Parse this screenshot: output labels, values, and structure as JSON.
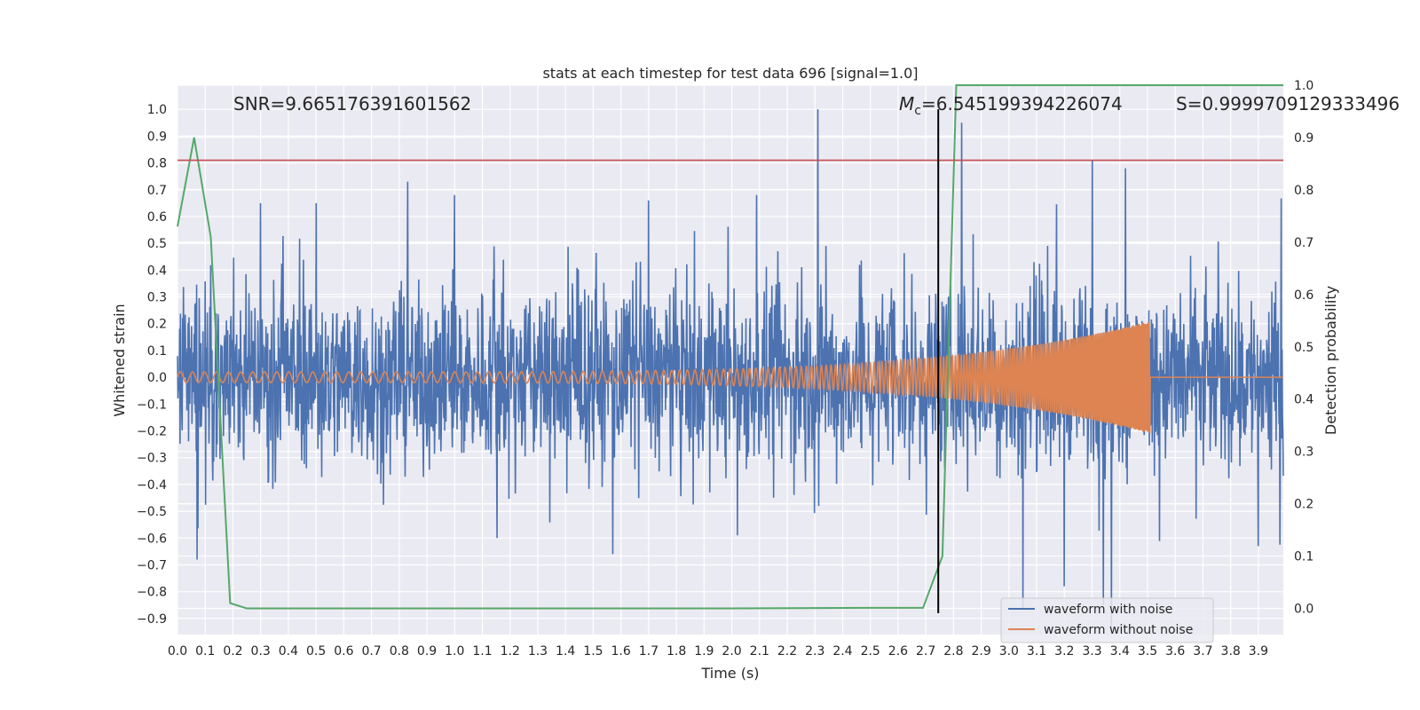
{
  "chart_data": {
    "type": "line",
    "title": "stats at each timestep for test data 696 [signal=1.0]",
    "xlabel": "Time (s)",
    "ylabel": "Whitened strain",
    "ylabel_right": "Detection probability",
    "xlim": [
      0.0,
      3.99
    ],
    "ylim": [
      -0.96,
      1.09
    ],
    "ylim_right": [
      -0.05,
      1.0
    ],
    "grid": true,
    "x_ticks": [
      0.0,
      0.1,
      0.2,
      0.3,
      0.4,
      0.5,
      0.6,
      0.7,
      0.8,
      0.9,
      1.0,
      1.1,
      1.2,
      1.3,
      1.4,
      1.5,
      1.6,
      1.7,
      1.8,
      1.9,
      2.0,
      2.1,
      2.2,
      2.3,
      2.4,
      2.5,
      2.6,
      2.7,
      2.8,
      2.9,
      3.0,
      3.1,
      3.2,
      3.3,
      3.4,
      3.5,
      3.6,
      3.7,
      3.8,
      3.9
    ],
    "x_tick_labels": [
      "0.0",
      "0.1",
      "0.2",
      "0.3",
      "0.4",
      "0.5",
      "0.6",
      "0.7",
      "0.8",
      "0.9",
      "1.0",
      "1.1",
      "1.2",
      "1.3",
      "1.4",
      "1.5",
      "1.6",
      "1.7",
      "1.8",
      "1.9",
      "2.0",
      "2.1",
      "2.2",
      "2.3",
      "2.4",
      "2.5",
      "2.6",
      "2.7",
      "2.8",
      "2.9",
      "3.0",
      "3.1",
      "3.2",
      "3.3",
      "3.4",
      "3.5",
      "3.6",
      "3.7",
      "3.8",
      "3.9"
    ],
    "y_ticks": [
      -0.9,
      -0.8,
      -0.7,
      -0.6,
      -0.5,
      -0.4,
      -0.3,
      -0.2,
      -0.1,
      0.0,
      0.1,
      0.2,
      0.3,
      0.4,
      0.5,
      0.6,
      0.7,
      0.8,
      0.9,
      1.0
    ],
    "y_tick_labels": [
      "−0.9",
      "−0.8",
      "−0.7",
      "−0.6",
      "−0.5",
      "−0.4",
      "−0.3",
      "−0.2",
      "−0.1",
      "0.0",
      "0.1",
      "0.2",
      "0.3",
      "0.4",
      "0.5",
      "0.6",
      "0.7",
      "0.8",
      "0.9",
      "1.0"
    ],
    "y_right_ticks": [
      0.0,
      0.1,
      0.2,
      0.3,
      0.4,
      0.5,
      0.6,
      0.7,
      0.8,
      0.9,
      1.0
    ],
    "y_right_tick_labels": [
      "0.0",
      "0.1",
      "0.2",
      "0.3",
      "0.4",
      "0.5",
      "0.6",
      "0.7",
      "0.8",
      "0.9",
      "1.0"
    ],
    "series": [
      {
        "name": "waveform with noise",
        "color": "#4c72b0",
        "axis": "left",
        "description_value": "dense noise, approx uniform amplitude ±0.3 with spikes up to 1.0",
        "amplitude_typical": 0.3,
        "spikes": [
          {
            "x": 0.3,
            "y": 0.65
          },
          {
            "x": 0.5,
            "y": 0.65
          },
          {
            "x": 0.83,
            "y": 0.73
          },
          {
            "x": 1.0,
            "y": 0.68
          },
          {
            "x": 1.7,
            "y": 0.66
          },
          {
            "x": 2.09,
            "y": 0.68
          },
          {
            "x": 2.31,
            "y": 1.0
          },
          {
            "x": 2.83,
            "y": 0.95
          },
          {
            "x": 3.3,
            "y": 0.81
          },
          {
            "x": 3.42,
            "y": 0.78
          },
          {
            "x": 0.07,
            "y": -0.68
          },
          {
            "x": 1.57,
            "y": -0.66
          },
          {
            "x": 2.02,
            "y": -0.59
          },
          {
            "x": 3.05,
            "y": -0.86
          },
          {
            "x": 3.2,
            "y": -0.78
          },
          {
            "x": 3.34,
            "y": -0.85
          },
          {
            "x": 3.37,
            "y": -0.93
          },
          {
            "x": 3.9,
            "y": -0.63
          }
        ]
      },
      {
        "name": "waveform without noise",
        "color": "#dd8452",
        "axis": "left",
        "chirp": {
          "start_x": 0.0,
          "merger_x": 3.51,
          "start_amplitude": 0.02,
          "peak_amplitude": 0.21,
          "start_freq_hz": 23,
          "end_freq_hz": 200
        }
      },
      {
        "name": "detection probability",
        "color": "#55a868",
        "axis": "right",
        "x": [
          0.0,
          0.06,
          0.12,
          0.19,
          0.25,
          2.0,
          2.5,
          2.69,
          2.76,
          2.81,
          3.99
        ],
        "y": [
          0.73,
          0.9,
          0.71,
          0.01,
          0.0,
          0.0,
          0.001,
          0.001,
          0.1,
          1.0,
          1.0
        ]
      }
    ],
    "hline": {
      "y": 0.81,
      "color": "#c44e52",
      "axis": "left"
    },
    "vline": {
      "x": 2.745,
      "color": "#000000",
      "y_range": [
        -0.88,
        1.0
      ]
    },
    "annotations": {
      "snr_label": "SNR=9.665176391601562",
      "mc_label_symbol": "M",
      "mc_label_sub": "c",
      "mc_label_value": "=6.545199394226074",
      "s_label": "S=0.9999709129333496"
    },
    "legend": {
      "position": "lower-right",
      "entries": [
        {
          "label": "waveform with noise",
          "color": "#4c72b0"
        },
        {
          "label": "waveform without noise",
          "color": "#dd8452"
        }
      ]
    },
    "colors": {
      "background": "#eaeaf2",
      "grid": "#ffffff"
    }
  }
}
